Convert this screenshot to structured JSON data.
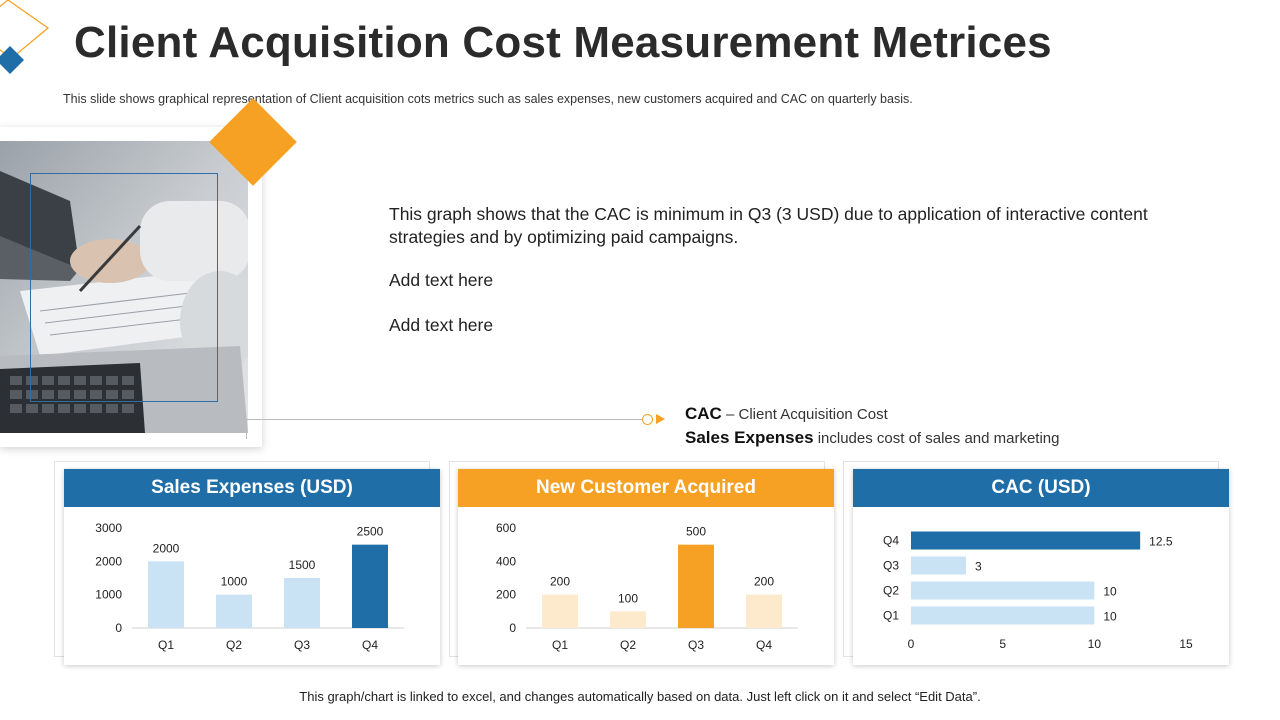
{
  "page": {
    "title": "Client Acquisition Cost Measurement Metrices",
    "subtitle": "This slide shows graphical representation of Client acquisition cots metrics such as sales expenses, new customers acquired and CAC on quarterly basis.",
    "description": "This graph shows that the CAC is minimum in Q3 (3 USD) due to application of interactive content strategies and by optimizing paid campaigns.",
    "add_text_1": "Add text here",
    "add_text_2": "Add text here",
    "footer": "This graph/chart is linked to excel, and changes automatically based on data.  Just left click on it and select “Edit Data”."
  },
  "legend": {
    "cac_term": "CAC",
    "cac_def": " – Client Acquisition Cost",
    "sales_term": "Sales Expenses",
    "sales_def": " includes cost of sales and marketing"
  },
  "colors": {
    "blue_dark": "#1f6ea7",
    "blue_light": "#c9e2f4",
    "orange": "#f6a124",
    "orange_light": "#fde9cc",
    "axis": "#d0d0d0",
    "text": "#222222"
  },
  "chart_data": [
    {
      "type": "bar",
      "title": "Sales Expenses (USD)",
      "categories": [
        "Q1",
        "Q2",
        "Q3",
        "Q4"
      ],
      "values": [
        2000,
        1000,
        1500,
        2500
      ],
      "ylim": [
        0,
        3000
      ],
      "yticks": [
        0,
        1000,
        2000,
        3000
      ],
      "highlight_index": 3,
      "data_labels": true,
      "theme": "blue"
    },
    {
      "type": "bar",
      "title": "New Customer Acquired",
      "categories": [
        "Q1",
        "Q2",
        "Q3",
        "Q4"
      ],
      "values": [
        200,
        100,
        500,
        200
      ],
      "ylim": [
        0,
        600
      ],
      "yticks": [
        0,
        200,
        400,
        600
      ],
      "highlight_index": 2,
      "data_labels": true,
      "theme": "orange"
    },
    {
      "type": "bar",
      "orientation": "horizontal",
      "title": "CAC (USD)",
      "categories": [
        "Q1",
        "Q2",
        "Q3",
        "Q4"
      ],
      "values": [
        10,
        10,
        3,
        12.5
      ],
      "xlim": [
        0,
        15
      ],
      "xticks": [
        0,
        5,
        10,
        15
      ],
      "highlight_index": 3,
      "data_labels": true,
      "theme": "blue"
    }
  ]
}
